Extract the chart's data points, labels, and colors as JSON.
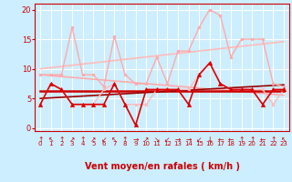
{
  "background_color": "#cceeff",
  "grid_color": "#ffffff",
  "x_labels": [
    "0",
    "1",
    "2",
    "3",
    "4",
    "5",
    "6",
    "7",
    "8",
    "9",
    "10",
    "11",
    "12",
    "13",
    "14",
    "15",
    "16",
    "17",
    "18",
    "19",
    "20",
    "21",
    "22",
    "23"
  ],
  "xlabel": "Vent moyen/en rafales ( km/h )",
  "xlabel_color": "#cc0000",
  "ylim": [
    -0.5,
    21
  ],
  "yticks": [
    0,
    5,
    10,
    15,
    20
  ],
  "series": [
    {
      "name": "rafales_upper",
      "color": "#ffaaaa",
      "lw": 1.0,
      "marker": "o",
      "ms": 2.0,
      "data": [
        9,
        9,
        9,
        17,
        9,
        9,
        7,
        15.5,
        9,
        7.5,
        7.5,
        12,
        7.5,
        13,
        13,
        17,
        20,
        19,
        12,
        15,
        15,
        15,
        7.5,
        7
      ]
    },
    {
      "name": "rafales_trend_up",
      "color": "#ffbbbb",
      "lw": 1.2,
      "marker": null,
      "ms": 0,
      "data": [
        10.0,
        10.2,
        10.4,
        10.6,
        10.8,
        11.0,
        11.2,
        11.4,
        11.6,
        11.8,
        12.0,
        12.2,
        12.4,
        12.6,
        12.8,
        13.0,
        13.2,
        13.4,
        13.6,
        13.8,
        14.0,
        14.2,
        14.4,
        14.6
      ]
    },
    {
      "name": "vent_upper",
      "color": "#ffbbbb",
      "lw": 1.0,
      "marker": "o",
      "ms": 2.0,
      "data": [
        4,
        7.5,
        6.5,
        4,
        4,
        4,
        6.5,
        7.5,
        4,
        4,
        4,
        6.5,
        6.5,
        6.5,
        6.5,
        9,
        11,
        7.5,
        6.5,
        6.5,
        6.5,
        6.5,
        4,
        6.5
      ]
    },
    {
      "name": "trend_down",
      "color": "#ffaaaa",
      "lw": 1.2,
      "marker": null,
      "ms": 0,
      "data": [
        9.0,
        8.85,
        8.7,
        8.55,
        8.4,
        8.25,
        8.1,
        7.95,
        7.8,
        7.65,
        7.5,
        7.35,
        7.2,
        7.05,
        6.9,
        6.75,
        6.6,
        6.45,
        6.3,
        6.15,
        6.0,
        5.85,
        5.7,
        5.55
      ]
    },
    {
      "name": "vent_moyen",
      "color": "#dd0000",
      "lw": 1.2,
      "marker": "^",
      "ms": 3.0,
      "data": [
        4,
        7.5,
        6.5,
        4,
        4,
        4,
        4,
        7.5,
        4,
        0.5,
        6.5,
        6.5,
        6.5,
        6.5,
        4,
        9,
        11,
        7.5,
        6.5,
        6.5,
        6.5,
        4,
        6.5,
        6.5
      ]
    },
    {
      "name": "vent_flat",
      "color": "#cc0000",
      "lw": 1.8,
      "marker": null,
      "ms": 0,
      "data": [
        6.2,
        6.2,
        6.2,
        6.2,
        6.2,
        6.2,
        6.2,
        6.2,
        6.2,
        6.2,
        6.2,
        6.2,
        6.2,
        6.2,
        6.2,
        6.2,
        6.2,
        6.2,
        6.2,
        6.2,
        6.2,
        6.2,
        6.2,
        6.2
      ]
    },
    {
      "name": "vent_trend",
      "color": "#990000",
      "lw": 1.2,
      "marker": null,
      "ms": 0,
      "data": [
        5.0,
        5.1,
        5.2,
        5.3,
        5.4,
        5.5,
        5.6,
        5.7,
        5.8,
        5.9,
        6.0,
        6.1,
        6.2,
        6.3,
        6.4,
        6.5,
        6.6,
        6.7,
        6.8,
        6.9,
        7.0,
        7.1,
        7.2,
        7.3
      ]
    }
  ],
  "arrow_symbols": [
    "↑",
    "↖",
    "↑",
    "↗",
    "↑",
    "↗",
    "↙",
    "↖",
    "↑",
    "→",
    "↗",
    "↘",
    "↙",
    "→",
    "→",
    "↙",
    "↓",
    "←",
    "←",
    "↑",
    "↑",
    "←",
    "↑",
    "↖"
  ],
  "arrow_color": "#cc0000",
  "tick_color": "#cc0000",
  "spine_color": "#cc0000"
}
